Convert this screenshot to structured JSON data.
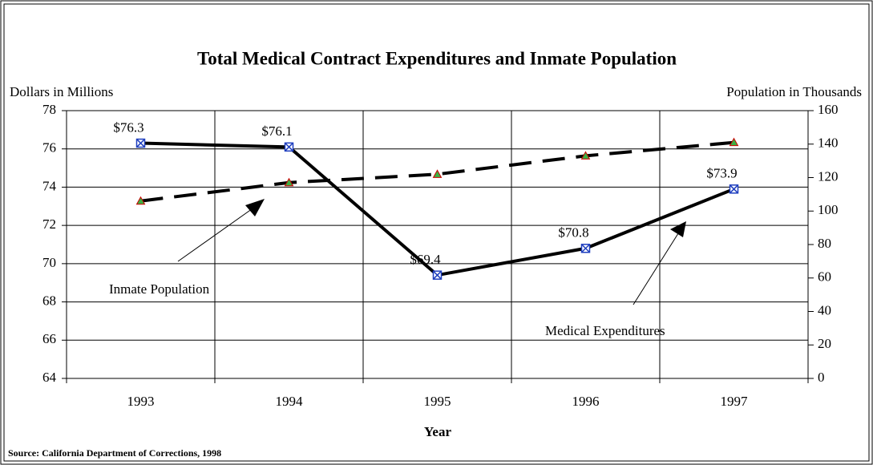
{
  "chart_data": {
    "type": "line",
    "title": "Total Medical Contract Expenditures and Inmate Population",
    "y_label": "Dollars in Millions",
    "y2_label": "Population in Thousands",
    "x_label": "Year",
    "source": "Source: California Department of Corrections, 1998",
    "annotations": [
      "Inmate Population",
      "Medical Expenditures"
    ],
    "categories": [
      "1993",
      "1994",
      "1995",
      "1996",
      "1997"
    ],
    "series": [
      {
        "name": "Medical Expenditures",
        "color": "#000000",
        "marker_color": "#1f3fbf",
        "dashed": false,
        "values": [
          76.3,
          76.1,
          69.4,
          70.8,
          73.9
        ],
        "value_labels": [
          "$76.3",
          "$76.1",
          "$69.4",
          "$70.8",
          "$73.9"
        ]
      },
      {
        "name": "Inmate Population",
        "color": "#000000",
        "marker_color": "#3cb043",
        "dashed": true,
        "axis": "y2",
        "values": [
          106,
          117,
          122,
          133,
          141
        ]
      }
    ],
    "ylim": [
      64,
      78
    ],
    "yticks": [
      64,
      66,
      68,
      70,
      72,
      74,
      76,
      78
    ],
    "y2lim": [
      0,
      160
    ],
    "y2ticks": [
      0,
      20,
      40,
      60,
      80,
      100,
      120,
      140,
      160
    ],
    "grid": true
  }
}
